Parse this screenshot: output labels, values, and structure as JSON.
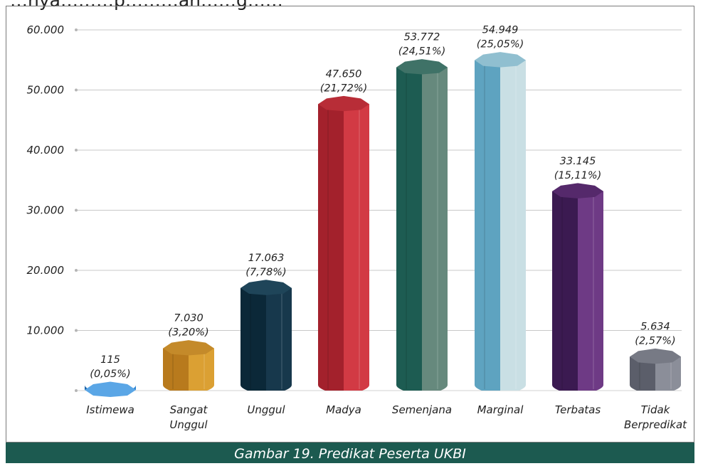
{
  "header": {
    "partial_text": "…nya………p………an……g……"
  },
  "caption": "Gambar 19. Predikat Peserta UKBI",
  "chart_data": {
    "type": "bar",
    "style": "3d-cylinder",
    "categories": [
      "Istimewa",
      "Sangat Unggul",
      "Unggul",
      "Madya",
      "Semenjana",
      "Marginal",
      "Terbatas",
      "Tidak Berpredikat"
    ],
    "category_lines": [
      [
        "Istimewa"
      ],
      [
        "Sangat",
        "Unggul"
      ],
      [
        "Unggul"
      ],
      [
        "Madya"
      ],
      [
        "Semenjana"
      ],
      [
        "Marginal"
      ],
      [
        "Terbatas"
      ],
      [
        "Tidak",
        "Berpredikat"
      ]
    ],
    "values": [
      115,
      7030,
      17063,
      47650,
      53772,
      54949,
      33145,
      5634
    ],
    "value_labels": [
      "115",
      "7.030",
      "17.063",
      "47.650",
      "53.772",
      "54.949",
      "33.145",
      "5.634"
    ],
    "percent_labels": [
      "(0,05%)",
      "(3,20%)",
      "(7,78%)",
      "(21,72%)",
      "(24,51%)",
      "(25,05%)",
      "(15,11%)",
      "(2,57%)"
    ],
    "yticks": [
      0,
      10000,
      20000,
      30000,
      40000,
      50000,
      60000
    ],
    "ytick_labels": [
      "",
      "10.000",
      "20.000",
      "30.000",
      "40.000",
      "50.000",
      "60.000"
    ],
    "ylim": [
      0,
      60000
    ],
    "grid": true,
    "legend": "none",
    "colors": {
      "Istimewa": [
        "#1b63a8",
        "#2f85d1",
        "#5aa6e6"
      ],
      "Sangat Unggul": [
        "#b87a1d",
        "#dba033",
        "#c48a2a"
      ],
      "Unggul": [
        "#0b2838",
        "#17384c",
        "#1f4559"
      ],
      "Madya": [
        "#a3212c",
        "#d23a44",
        "#b82d37"
      ],
      "Semenjana": [
        "#1d5c52",
        "#66897d",
        "#3f7267"
      ],
      "Marginal": [
        "#5ea3c0",
        "#c9dfe4",
        "#90bfd0"
      ],
      "Terbatas": [
        "#3b1a51",
        "#6e3a85",
        "#55296b"
      ],
      "Tidak Berpredikat": [
        "#5b5e6a",
        "#8b8e99",
        "#777a85"
      ]
    }
  }
}
